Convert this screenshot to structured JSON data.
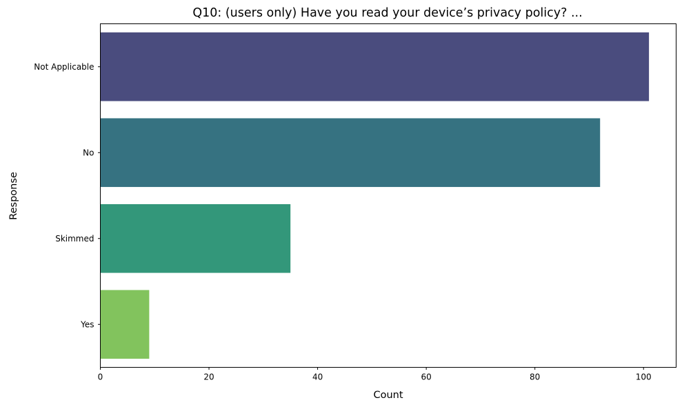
{
  "chart_data": {
    "type": "bar",
    "orientation": "horizontal",
    "title": "Q10: (users only) Have you read your device’s privacy policy? ...",
    "xlabel": "Count",
    "ylabel": "Response",
    "categories": [
      "Not Applicable",
      "No",
      "Skimmed",
      "Yes"
    ],
    "values": [
      101,
      92,
      35,
      9
    ],
    "colors": [
      "#4a4c7e",
      "#367281",
      "#33977a",
      "#82c35d"
    ],
    "xlim": [
      0,
      106
    ],
    "xticks": [
      0,
      20,
      40,
      60,
      80,
      100
    ],
    "xtick_labels": [
      "0",
      "20",
      "40",
      "60",
      "80",
      "100"
    ],
    "grid": false,
    "legend": "none"
  }
}
